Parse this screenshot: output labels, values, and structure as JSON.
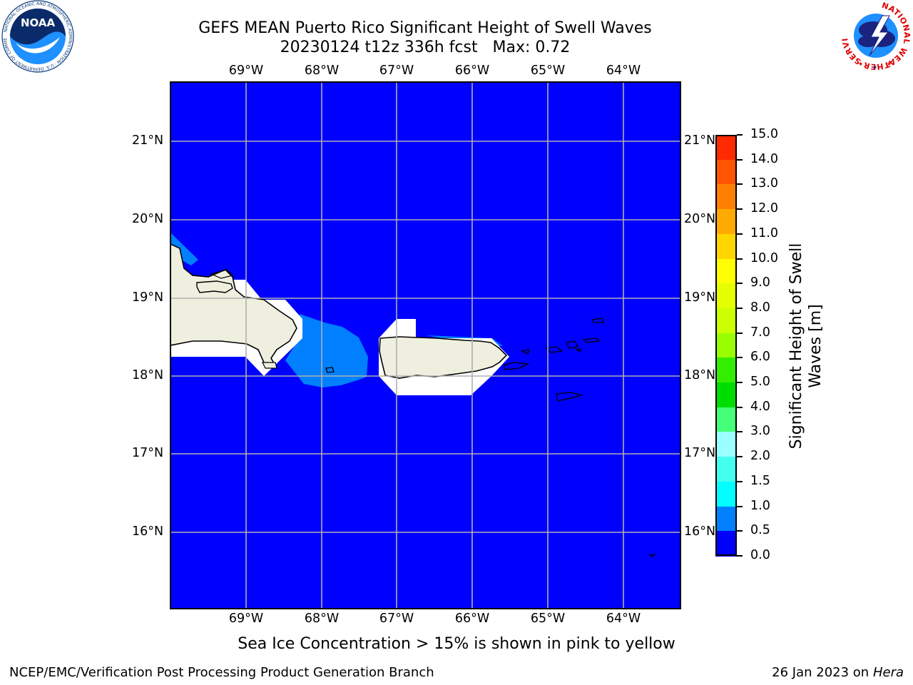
{
  "header": {
    "title_line1": "GEFS MEAN Puerto Rico Significant Height of Swell Waves",
    "title_line2": "20230124 t12z 336h fcst   Max: 0.72"
  },
  "logos": {
    "noaa_text": "NOAA",
    "noaa_ring_text": "NATIONAL OCEANIC AND ATMOSPHERIC ADMINISTRATION · U.S. DEPARTMENT OF COMMERCE",
    "nws_ring_text": "NATIONAL WEATHER SERVICE"
  },
  "map": {
    "longitude_labels": [
      "69°W",
      "68°W",
      "67°W",
      "66°W",
      "65°W",
      "64°W"
    ],
    "latitude_labels": [
      "21°N",
      "20°N",
      "19°N",
      "18°N",
      "17°N",
      "16°N"
    ],
    "colors": {
      "ocean": "#0000ff",
      "swell_0_5_to_1": "#0080ff",
      "no_data": "#ffffff",
      "land": "#efefdf",
      "grid": "#b0b0b0"
    }
  },
  "colorbar": {
    "label_line1": "Significant Height of Swell",
    "label_line2": "Waves [m]",
    "ticks": [
      "15.0",
      "14.0",
      "13.0",
      "12.0",
      "11.0",
      "10.0",
      "9.0",
      "8.0",
      "7.0",
      "6.0",
      "5.0",
      "4.0",
      "3.0",
      "2.0",
      "1.5",
      "1.0",
      "0.5",
      "0.0"
    ],
    "colors_top_to_bottom": [
      "#ff0000",
      "#ff2a00",
      "#ff5500",
      "#ff8000",
      "#ffaa00",
      "#ffd500",
      "#ffff00",
      "#e5ff00",
      "#ccff00",
      "#99ff00",
      "#33ee00",
      "#00dd00",
      "#44ff77",
      "#99ffff",
      "#44ffee",
      "#00ffff",
      "#0080ff",
      "#0000ff"
    ]
  },
  "footer": {
    "note": "Sea Ice Concentration > 15% is shown in pink to yellow",
    "left": "NCEP/EMC/Verification Post Processing Product Generation Branch",
    "date": "26 Jan 2023 on ",
    "machine": "Hera"
  }
}
